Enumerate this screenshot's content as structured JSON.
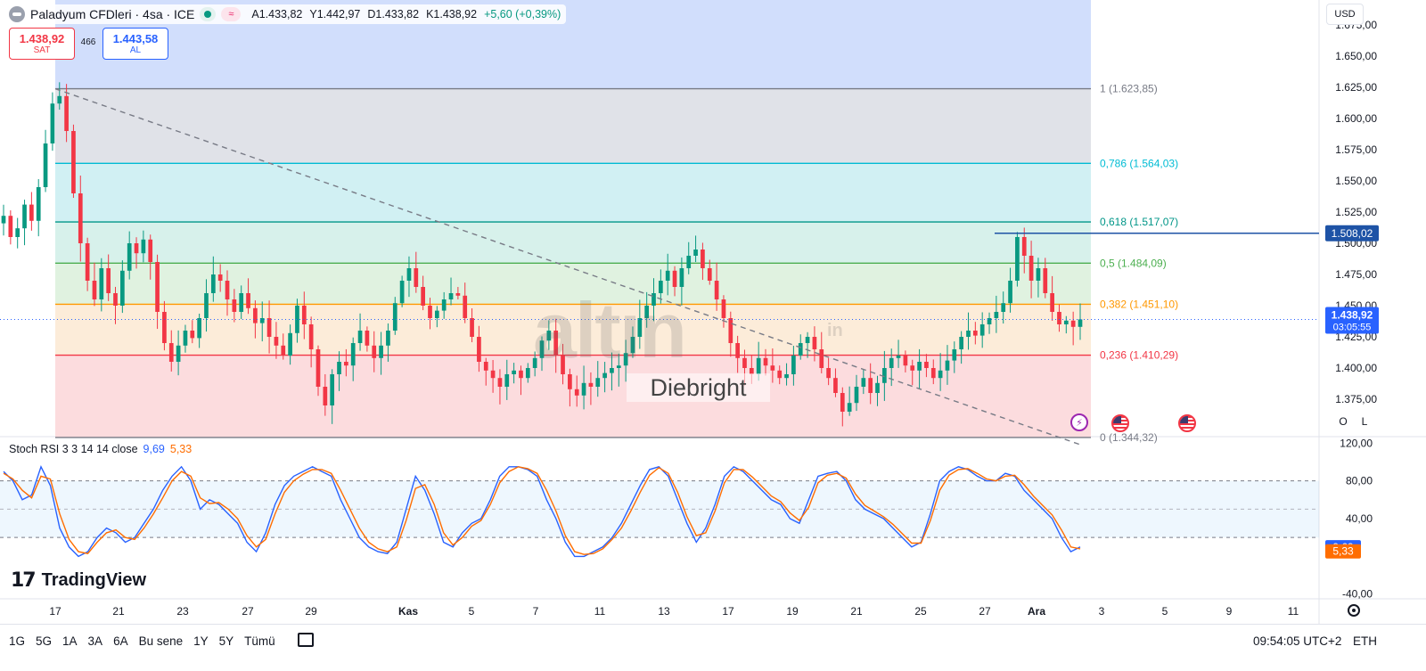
{
  "header": {
    "symbol_title": "Paladyum CFDleri · 4sa · ICE",
    "ohlc": {
      "open": "A1.433,82",
      "high": "Y1.442,97",
      "low": "D1.433,82",
      "close": "K1.438,92",
      "change": "+5,60 (+0,39%)"
    }
  },
  "trade": {
    "sell_price": "1.438,92",
    "sell_label": "SAT",
    "spread": "466",
    "buy_price": "1.443,58",
    "buy_label": "AL"
  },
  "currency_button": "USD",
  "ol_buttons": {
    "o": "O",
    "l": "L"
  },
  "stoch_rsi": {
    "title": "Stoch RSI 3 3 14 14 close",
    "k_value": "9,69",
    "d_value": "5,33"
  },
  "logo": {
    "text": "TradingView"
  },
  "watermark": {
    "brand": "altın",
    "brand_suffix": "in",
    "text": "Diebright"
  },
  "range_buttons": [
    "1G",
    "5G",
    "1A",
    "3A",
    "6A",
    "Bu sene",
    "1Y",
    "5Y",
    "Tümü"
  ],
  "clock": "09:54:05 UTC+2",
  "session": "ETH",
  "colors": {
    "up": "#089981",
    "down": "#f23645",
    "stoch_k": "#2962ff",
    "stoch_d": "#ff6d00",
    "price_label": "#2962ff",
    "line_label": "#1e53a6"
  },
  "chart_data": [
    {
      "type": "candlestick",
      "instrument": "Paladyum CFDleri · 4sa · ICE",
      "y_ticks": [
        "1.375,00",
        "1.400,00",
        "1.425,00",
        "1.450,00",
        "1.475,00",
        "1.500,00",
        "1.525,00",
        "1.550,00",
        "1.575,00",
        "1.600,00",
        "1.625,00",
        "1.650,00",
        "1.675,00"
      ],
      "y_tick_values": [
        1375,
        1400,
        1425,
        1450,
        1475,
        1500,
        1525,
        1550,
        1575,
        1600,
        1625,
        1650,
        1675
      ],
      "x_ticks": [
        "17",
        "21",
        "23",
        "27",
        "29",
        "Kas",
        "5",
        "7",
        "11",
        "13",
        "17",
        "19",
        "21",
        "25",
        "27",
        "Ara",
        "3",
        "5",
        "9",
        "11"
      ],
      "ylim": [
        1345,
        1695
      ],
      "last_price": {
        "value": 1438.92,
        "label": "1.438,92",
        "countdown": "03:05:55"
      },
      "horizontal_line": {
        "value": 1508.02,
        "label": "1.508,02"
      },
      "fibonacci": [
        {
          "level": "1",
          "value": 1623.85,
          "label": "1 (1.623,85)",
          "color": "#787b86"
        },
        {
          "level": "0,786",
          "value": 1564.03,
          "label": "0,786 (1.564,03)",
          "color": "#00bcd4"
        },
        {
          "level": "0,618",
          "value": 1517.07,
          "label": "0,618 (1.517,07)",
          "color": "#009688"
        },
        {
          "level": "0,5",
          "value": 1484.09,
          "label": "0,5 (1.484,09)",
          "color": "#4caf50"
        },
        {
          "level": "0,382",
          "value": 1451.1,
          "label": "0,382 (1.451,10)",
          "color": "#ff9800"
        },
        {
          "level": "0,236",
          "value": 1410.29,
          "label": "0,236 (1.410,29)",
          "color": "#f23645"
        },
        {
          "level": "0",
          "value": 1344.32,
          "label": "0 (1.344,32)",
          "color": "#787b86"
        }
      ],
      "close_path": [
        1522,
        1505,
        1512,
        1531,
        1518,
        1545,
        1580,
        1612,
        1618,
        1590,
        1540,
        1500,
        1470,
        1455,
        1480,
        1460,
        1450,
        1478,
        1500,
        1492,
        1503,
        1485,
        1445,
        1420,
        1405,
        1418,
        1430,
        1424,
        1440,
        1460,
        1475,
        1470,
        1455,
        1445,
        1460,
        1448,
        1436,
        1440,
        1425,
        1418,
        1410,
        1428,
        1450,
        1435,
        1415,
        1385,
        1370,
        1395,
        1405,
        1402,
        1420,
        1430,
        1418,
        1408,
        1418,
        1430,
        1452,
        1470,
        1480,
        1465,
        1450,
        1440,
        1446,
        1455,
        1460,
        1458,
        1440,
        1425,
        1405,
        1398,
        1392,
        1385,
        1395,
        1398,
        1392,
        1400,
        1408,
        1422,
        1430,
        1410,
        1395,
        1383,
        1378,
        1388,
        1385,
        1392,
        1396,
        1400,
        1402,
        1412,
        1425,
        1440,
        1450,
        1460,
        1470,
        1478,
        1465,
        1480,
        1490,
        1495,
        1480,
        1470,
        1455,
        1440,
        1420,
        1408,
        1400,
        1395,
        1408,
        1402,
        1398,
        1392,
        1395,
        1410,
        1420,
        1425,
        1415,
        1400,
        1392,
        1380,
        1365,
        1372,
        1385,
        1392,
        1380,
        1388,
        1400,
        1408,
        1410,
        1402,
        1398,
        1405,
        1400,
        1392,
        1398,
        1406,
        1415,
        1425,
        1430,
        1426,
        1435,
        1440,
        1445,
        1452,
        1470,
        1505,
        1490,
        1470,
        1480,
        1460,
        1445,
        1435,
        1438,
        1433,
        1439
      ]
    },
    {
      "type": "line",
      "title": "Stoch RSI 3 3 14 14 close",
      "y_ticks": [
        "-40,00",
        "40,00",
        "80,00",
        "120,00"
      ],
      "y_tick_values": [
        -40,
        40,
        80,
        120
      ],
      "ylim": [
        -45,
        125
      ],
      "band": [
        20,
        80
      ],
      "series": [
        {
          "name": "K",
          "last": 9.69,
          "color": "#2962ff",
          "values": [
            90,
            80,
            60,
            65,
            95,
            75,
            30,
            10,
            0,
            5,
            20,
            30,
            25,
            15,
            20,
            35,
            50,
            70,
            85,
            95,
            80,
            50,
            60,
            55,
            45,
            35,
            15,
            5,
            25,
            55,
            75,
            85,
            90,
            95,
            90,
            85,
            60,
            40,
            20,
            10,
            5,
            3,
            15,
            50,
            85,
            70,
            45,
            15,
            10,
            25,
            35,
            40,
            60,
            85,
            95,
            95,
            92,
            85,
            60,
            40,
            15,
            0,
            0,
            5,
            10,
            20,
            35,
            55,
            75,
            92,
            95,
            85,
            60,
            35,
            15,
            30,
            55,
            85,
            95,
            90,
            80,
            70,
            60,
            55,
            40,
            35,
            60,
            85,
            88,
            90,
            80,
            60,
            50,
            45,
            40,
            30,
            20,
            10,
            15,
            45,
            80,
            90,
            95,
            92,
            85,
            80,
            80,
            88,
            85,
            70,
            60,
            50,
            40,
            20,
            5,
            10
          ],
          "x_count": 116
        },
        {
          "name": "D",
          "last": 5.33,
          "color": "#ff6d00",
          "values": [
            88,
            82,
            70,
            62,
            85,
            82,
            45,
            18,
            5,
            3,
            15,
            25,
            28,
            20,
            18,
            30,
            45,
            62,
            80,
            90,
            85,
            62,
            56,
            57,
            50,
            40,
            22,
            10,
            18,
            45,
            68,
            80,
            87,
            92,
            92,
            88,
            70,
            50,
            30,
            15,
            8,
            5,
            10,
            38,
            72,
            76,
            55,
            25,
            12,
            20,
            32,
            38,
            55,
            78,
            90,
            95,
            93,
            88,
            70,
            48,
            22,
            5,
            2,
            3,
            8,
            18,
            30,
            48,
            68,
            86,
            94,
            88,
            68,
            42,
            22,
            25,
            48,
            78,
            92,
            92,
            84,
            74,
            64,
            58,
            46,
            38,
            52,
            78,
            86,
            88,
            83,
            66,
            54,
            48,
            42,
            34,
            24,
            14,
            14,
            38,
            70,
            86,
            92,
            93,
            88,
            82,
            80,
            85,
            86,
            76,
            64,
            54,
            44,
            28,
            10,
            8
          ],
          "x_count": 116
        }
      ]
    }
  ]
}
